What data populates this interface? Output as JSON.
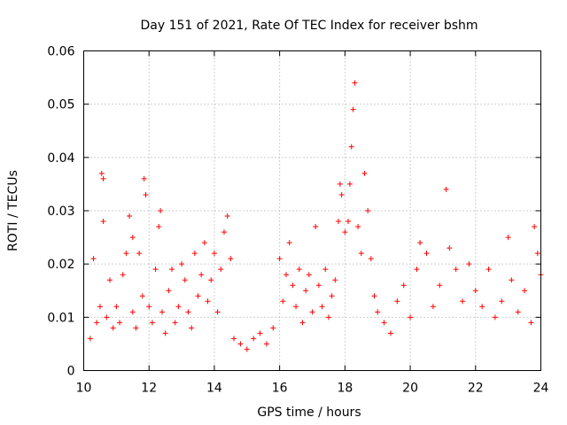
{
  "chart_data": {
    "type": "scatter",
    "title": "Day 151 of 2021, Rate Of TEC Index for receiver bshm",
    "xlabel": "GPS time / hours",
    "ylabel": "ROTI / TECUs",
    "xlim": [
      10,
      24
    ],
    "ylim": [
      0,
      0.06
    ],
    "x_ticks": [
      "10",
      "12",
      "14",
      "16",
      "18",
      "20",
      "22",
      "24"
    ],
    "y_ticks": [
      "0",
      "0.01",
      "0.02",
      "0.03",
      "0.04",
      "0.05",
      "0.06"
    ],
    "grid": true,
    "marker": "plus",
    "color": "#ff0000",
    "series": [
      {
        "x": [
          10.2,
          10.3,
          10.4,
          10.5,
          10.55,
          10.6,
          10.6,
          10.7,
          10.8,
          10.9,
          11.0,
          11.1,
          11.2,
          11.3,
          11.4,
          11.5,
          11.5,
          11.6,
          11.7,
          11.8,
          11.85,
          11.9,
          12.0,
          12.1,
          12.2,
          12.3,
          12.35,
          12.4,
          12.5,
          12.6,
          12.7,
          12.8,
          12.9,
          13.0,
          13.1,
          13.2,
          13.3,
          13.4,
          13.5,
          13.6,
          13.7,
          13.8,
          13.9,
          14.0,
          14.1,
          14.2,
          14.3,
          14.4,
          14.5,
          14.6,
          14.8,
          15.0,
          15.2,
          15.4,
          15.6,
          15.8,
          16.0,
          16.1,
          16.2,
          16.3,
          16.4,
          16.5,
          16.6,
          16.7,
          16.8,
          16.9,
          17.0,
          17.1,
          17.2,
          17.3,
          17.4,
          17.5,
          17.6,
          17.7,
          17.8,
          17.85,
          17.9,
          18.0,
          18.1,
          18.15,
          18.2,
          18.25,
          18.3,
          18.4,
          18.5,
          18.6,
          18.7,
          18.8,
          18.9,
          19.0,
          19.2,
          19.4,
          19.6,
          19.8,
          20.0,
          20.2,
          20.3,
          20.5,
          20.7,
          20.9,
          21.1,
          21.2,
          21.4,
          21.6,
          21.8,
          22.0,
          22.2,
          22.4,
          22.6,
          22.8,
          23.0,
          23.1,
          23.3,
          23.5,
          23.7,
          23.8,
          23.9,
          24.0
        ],
        "y": [
          0.006,
          0.021,
          0.009,
          0.012,
          0.037,
          0.036,
          0.028,
          0.01,
          0.017,
          0.008,
          0.012,
          0.009,
          0.018,
          0.022,
          0.029,
          0.011,
          0.025,
          0.008,
          0.022,
          0.014,
          0.036,
          0.033,
          0.012,
          0.009,
          0.019,
          0.027,
          0.03,
          0.011,
          0.007,
          0.015,
          0.019,
          0.009,
          0.012,
          0.02,
          0.017,
          0.011,
          0.008,
          0.022,
          0.014,
          0.018,
          0.024,
          0.013,
          0.017,
          0.022,
          0.011,
          0.019,
          0.026,
          0.029,
          0.021,
          0.006,
          0.005,
          0.004,
          0.006,
          0.007,
          0.005,
          0.008,
          0.021,
          0.013,
          0.018,
          0.024,
          0.016,
          0.012,
          0.019,
          0.009,
          0.015,
          0.018,
          0.011,
          0.027,
          0.016,
          0.012,
          0.019,
          0.01,
          0.014,
          0.017,
          0.028,
          0.035,
          0.033,
          0.026,
          0.028,
          0.035,
          0.042,
          0.049,
          0.054,
          0.027,
          0.022,
          0.037,
          0.03,
          0.021,
          0.014,
          0.011,
          0.009,
          0.007,
          0.013,
          0.016,
          0.01,
          0.019,
          0.024,
          0.022,
          0.012,
          0.016,
          0.034,
          0.023,
          0.019,
          0.013,
          0.02,
          0.015,
          0.012,
          0.019,
          0.01,
          0.013,
          0.025,
          0.017,
          0.011,
          0.015,
          0.009,
          0.027,
          0.022,
          0.018
        ]
      }
    ]
  }
}
